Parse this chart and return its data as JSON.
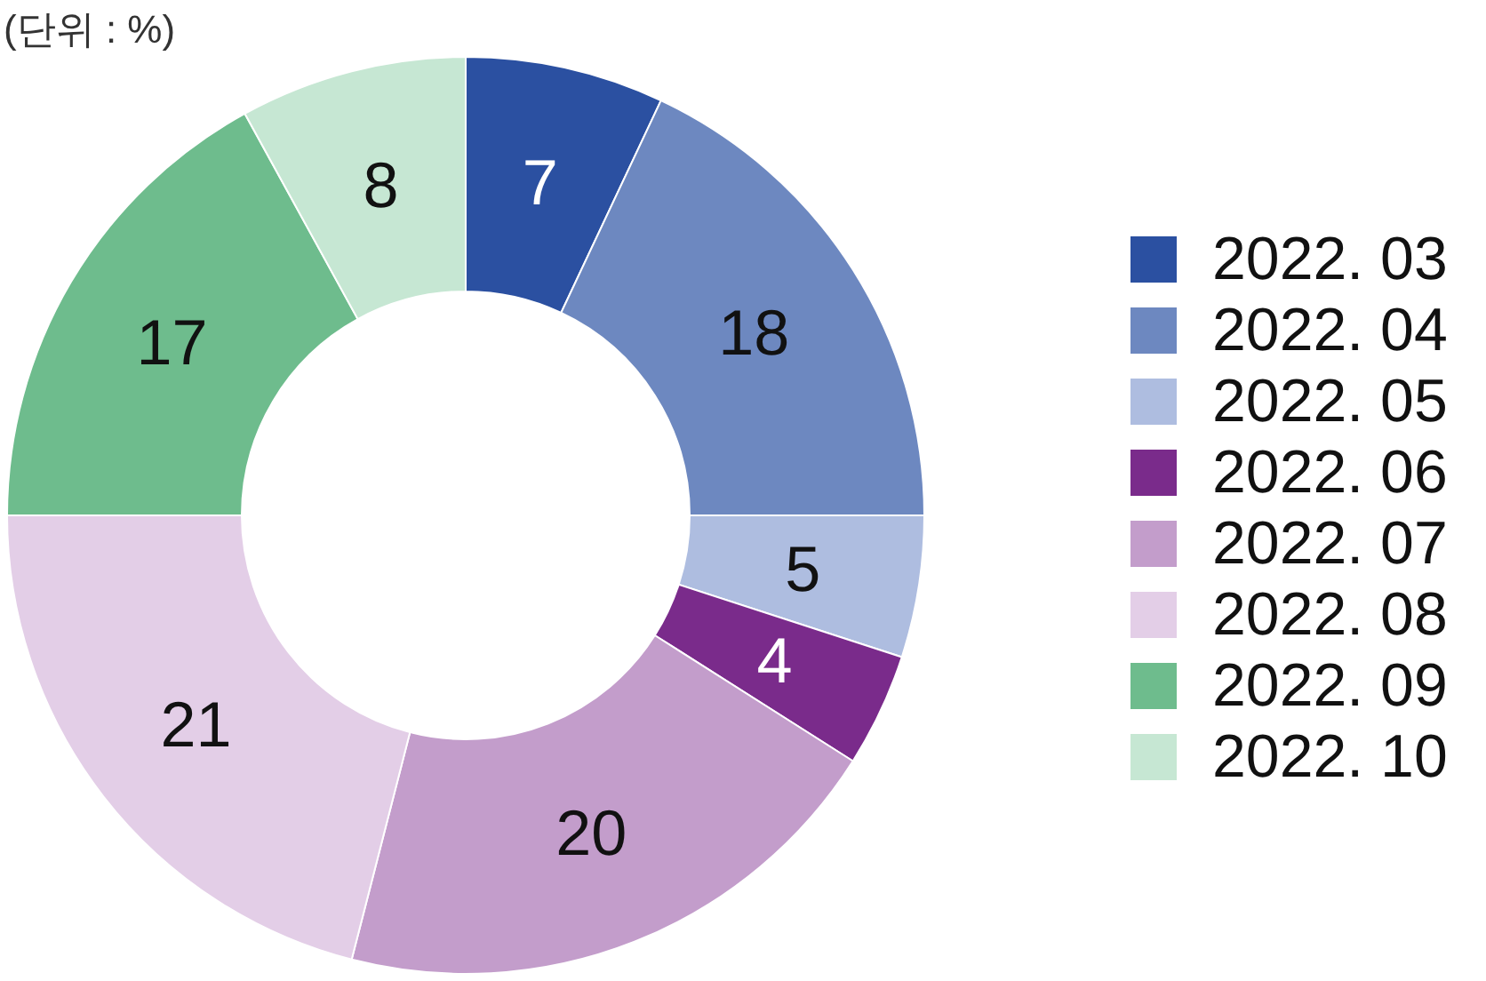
{
  "chart_data": {
    "type": "donut",
    "annotations": [
      "(단위 : %)"
    ],
    "categories": [
      "2022. 03",
      "2022. 04",
      "2022. 05",
      "2022. 06",
      "2022. 07",
      "2022. 08",
      "2022. 09",
      "2022. 10"
    ],
    "values": [
      7,
      18,
      5,
      4,
      20,
      21,
      17,
      8
    ],
    "colors": [
      "#2b50a1",
      "#6d88c0",
      "#aebde0",
      "#7a2b8b",
      "#c39dcb",
      "#e3cee7",
      "#6ebc8d",
      "#c6e7d3"
    ],
    "data_labels": true,
    "legend": "right"
  }
}
